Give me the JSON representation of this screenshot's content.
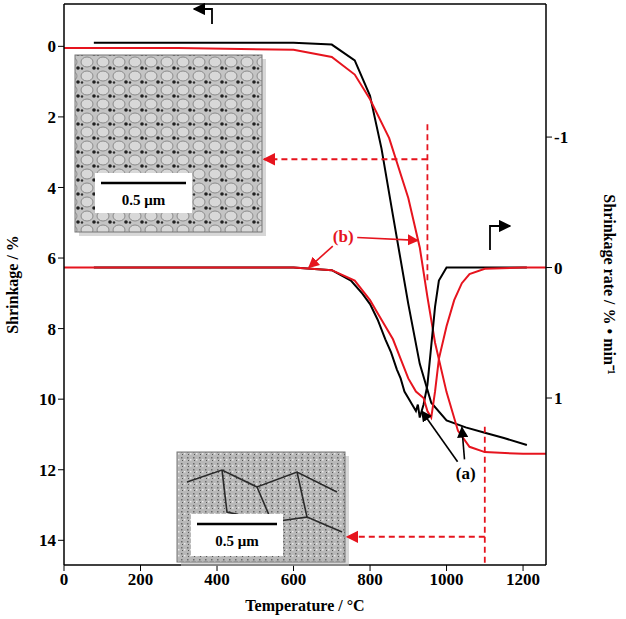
{
  "chart_data": {
    "type": "line",
    "x_label": "Temperature / °C",
    "y_label": "Shrinkage / %",
    "y2_label": "Shrinkage rate / % • min⁻¹",
    "xlim": [
      0,
      1260
    ],
    "xticks": [
      0,
      200,
      400,
      600,
      800,
      1000,
      1200
    ],
    "ylim": [
      14.7,
      -1.2
    ],
    "yticks": [
      0,
      2,
      4,
      6,
      8,
      10,
      12,
      14
    ],
    "y2lim": [
      2.28,
      -2.02
    ],
    "y2ticks": [
      -1,
      0,
      1
    ],
    "grid": false,
    "series": [
      {
        "color": "#000000",
        "x": [
          78,
          300,
          600,
          700,
          760,
          800,
          830,
          860,
          900,
          930,
          960,
          1000,
          1050,
          1100,
          1150,
          1210
        ],
        "values": [
          -0.1,
          -0.1,
          -0.1,
          -0.05,
          0.4,
          1.4,
          2.9,
          4.8,
          7.3,
          9.0,
          10.1,
          10.6,
          10.8,
          10.95,
          11.1,
          11.3
        ]
      },
      {
        "color": "#e6141e",
        "x": [
          0,
          300,
          600,
          700,
          760,
          800,
          850,
          900,
          930,
          950,
          970,
          1000,
          1030,
          1060,
          1100,
          1200,
          1260
        ],
        "values": [
          0.05,
          0.05,
          0.1,
          0.3,
          0.8,
          1.5,
          2.6,
          4.3,
          5.7,
          7.1,
          8.4,
          9.8,
          10.9,
          11.35,
          11.5,
          11.55,
          11.55
        ]
      },
      {
        "color": "#000000",
        "axis": "y2",
        "x": [
          78,
          300,
          600,
          700,
          750,
          780,
          800,
          820,
          840,
          855,
          870,
          880,
          890,
          900,
          910,
          920,
          925,
          930,
          935,
          940,
          950,
          960,
          970,
          980,
          1000,
          1100,
          1210
        ],
        "values": [
          0,
          0,
          0,
          0.02,
          0.1,
          0.2,
          0.28,
          0.4,
          0.55,
          0.65,
          0.78,
          0.85,
          0.95,
          1.0,
          1.05,
          1.1,
          1.05,
          1.15,
          1.1,
          1.05,
          0.9,
          0.6,
          0.3,
          0.1,
          0,
          0,
          0
        ]
      },
      {
        "color": "#e6141e",
        "axis": "y2",
        "x": [
          0,
          300,
          600,
          700,
          760,
          800,
          820,
          840,
          860,
          880,
          900,
          920,
          940,
          950,
          960,
          965,
          970,
          980,
          1000,
          1020,
          1040,
          1060,
          1100,
          1200,
          1260
        ],
        "values": [
          0,
          0,
          0,
          0.02,
          0.1,
          0.25,
          0.35,
          0.45,
          0.55,
          0.7,
          0.85,
          0.95,
          1.0,
          1.1,
          1.15,
          1.05,
          0.95,
          0.7,
          0.45,
          0.25,
          0.12,
          0.05,
          0.01,
          0,
          0
        ]
      }
    ],
    "annotations": [
      {
        "text": "(a)",
        "color": "#000000",
        "x": 1050,
        "y": 12.1,
        "targets": [
          {
            "x": 935,
            "y": 1.1,
            "axis": "y2"
          },
          {
            "x": 1040,
            "y": 10.8
          }
        ]
      },
      {
        "text": "(b)",
        "color": "#e6141e",
        "x": 730,
        "y": 5.4,
        "targets": [
          {
            "x": 925,
            "y": 5.5
          },
          {
            "x": 640,
            "y": 0,
            "axis": "y2"
          }
        ]
      }
    ],
    "sem_images": [
      {
        "scale_bar": "0.5 μm",
        "temperature": 950,
        "shrinkage": 3.2,
        "color": "#e6141e"
      },
      {
        "scale_bar": "0.5 μm",
        "temperature": 1100,
        "shrinkage": 13.9,
        "color": "#e6141e"
      }
    ]
  }
}
